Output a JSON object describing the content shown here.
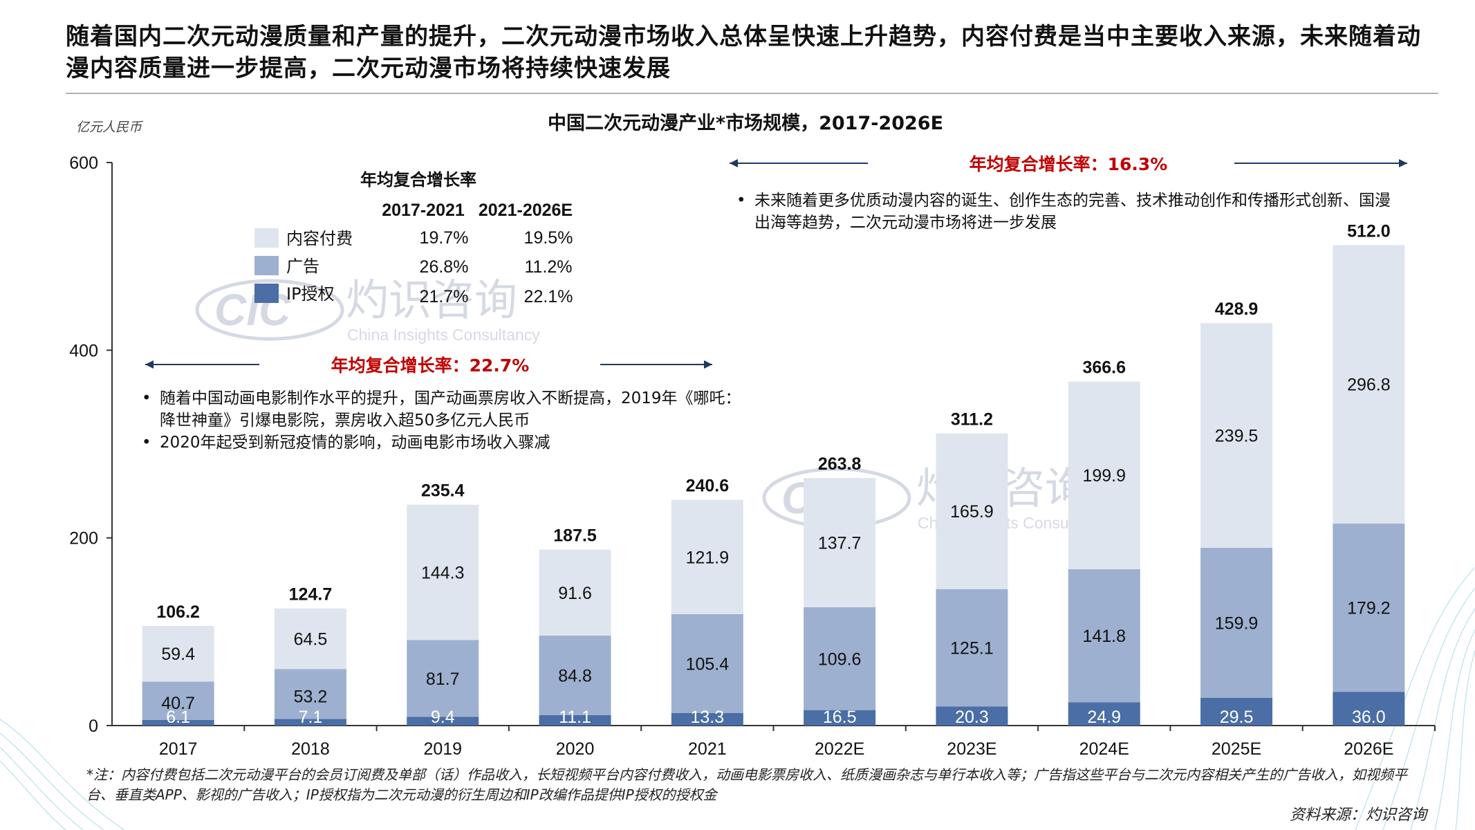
{
  "headline": "随着国内二次元动漫质量和产量的提升，二次元动漫市场收入总体呈快速上升趋势，内容付费是当中主要收入来源，未来随着动漫内容质量进一步提高，二次元动漫市场将持续快速发展",
  "colors": {
    "content": "#dfe5ef",
    "advertising": "#9eb0cf",
    "ip": "#4a6ea5",
    "cagr_red": "#c00000",
    "axis": "#333333"
  },
  "cagr_table": {
    "title": "年均复合增长率",
    "periods": [
      "2017-2021",
      "2021-2026E"
    ],
    "rows": [
      {
        "name": "内容付费",
        "rates": [
          "19.7%",
          "19.5%"
        ]
      },
      {
        "name": "广告",
        "rates": [
          "26.8%",
          "11.2%"
        ]
      },
      {
        "name": "IP授权",
        "rates": [
          "21.7%",
          "22.1%"
        ]
      }
    ]
  },
  "cagr_left": "年均复合增长率：22.7%",
  "cagr_right": "年均复合增长率：16.3%",
  "bullets_left": [
    "随着中国动画电影制作水平的提升，国产动画票房收入不断提高，2019年《哪吒：降世神童》引爆电影院，票房收入超50多亿元人民币",
    "2020年起受到新冠疫情的影响，动画电影市场收入骤减"
  ],
  "bullets_right": [
    "未来随着更多优质动漫内容的诞生、创作生态的完善、技术推动创作和传播形式创新、国漫出海等趋势，二次元动漫市场将进一步发展"
  ],
  "bullet_symbol": "•",
  "watermark": {
    "logo": "CIC",
    "name": "灼识咨询",
    "english": "China Insights Consultancy"
  },
  "note": "*注：内容付费包括二次元动漫平台的会员订阅费及单部（话）作品收入，长短视频平台内容付费收入，动画电影票房收入、纸质漫画杂志与单行本收入等；广告指这些平台与二次元内容相关产生的广告收入，如视频平台、垂直类APP、影视的广告收入；IP授权指为二次元动漫的衍生周边和IP改编作品提供IP授权的授权金",
  "source": "资料来源：灼识咨询",
  "chart_data": {
    "type": "bar",
    "stacked": true,
    "title": "中国二次元动漫产业*市场规模，2017-2026E",
    "ylabel": "亿元人民币",
    "xlabel": "",
    "ylim": [
      0,
      600
    ],
    "yticks": [
      0,
      200,
      400,
      600
    ],
    "grid": false,
    "legend": "top-left",
    "categories": [
      "2017",
      "2018",
      "2019",
      "2020",
      "2021",
      "2022E",
      "2023E",
      "2024E",
      "2025E",
      "2026E"
    ],
    "totals": [
      "106.2",
      "124.7",
      "235.4",
      "187.5",
      "240.6",
      "263.8",
      "311.2",
      "366.6",
      "428.9",
      "512.0"
    ],
    "series": [
      {
        "name": "IP授权",
        "color": "#4a6ea5",
        "values": [
          6.1,
          7.1,
          9.4,
          11.1,
          13.3,
          16.5,
          20.3,
          24.9,
          29.5,
          36.0
        ],
        "labels": [
          "6.1",
          "7.1",
          "9.4",
          "11.1",
          "13.3",
          "16.5",
          "20.3",
          "24.9",
          "29.5",
          "36.0"
        ]
      },
      {
        "name": "广告",
        "color": "#9eb0cf",
        "values": [
          40.7,
          53.2,
          81.7,
          84.8,
          105.4,
          109.6,
          125.1,
          141.8,
          159.9,
          179.2
        ],
        "labels": [
          "40.7",
          "53.2",
          "81.7",
          "84.8",
          "105.4",
          "109.6",
          "125.1",
          "141.8",
          "159.9",
          "179.2"
        ]
      },
      {
        "name": "内容付费",
        "color": "#dfe5ef",
        "values": [
          59.4,
          64.5,
          144.3,
          91.6,
          121.9,
          137.7,
          165.9,
          199.9,
          239.5,
          296.8
        ],
        "labels": [
          "59.4",
          "64.5",
          "144.3",
          "91.6",
          "121.9",
          "137.7",
          "165.9",
          "199.9",
          "239.5",
          "296.8"
        ]
      }
    ]
  }
}
